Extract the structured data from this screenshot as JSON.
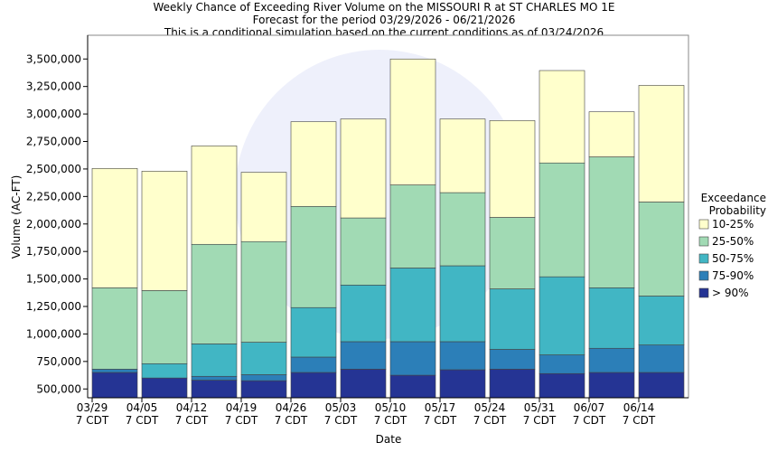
{
  "chart_data": {
    "type": "range-bar",
    "title": [
      "Weekly Chance of Exceeding River Volume on the MISSOURI R at ST CHARLES MO 1E",
      "Forecast for the period 03/29/2026 - 06/21/2026",
      "This is a conditional simulation based on the current conditions as of 03/24/2026"
    ],
    "x_label": "Date",
    "y_label": "Volume (AC-FT)",
    "legend_title": "Exceedance\nProbability",
    "categories": [
      "03/29\n7 CDT",
      "04/05\n7 CDT",
      "04/12\n7 CDT",
      "04/19\n7 CDT",
      "04/26\n7 CDT",
      "05/03\n7 CDT",
      "05/10\n7 CDT",
      "05/17\n7 CDT",
      "05/24\n7 CDT",
      "05/31\n7 CDT",
      "06/07\n7 CDT",
      "06/14\n7 CDT"
    ],
    "series": [
      {
        "name": "> 90%",
        "color": "#253494",
        "values": [
          650000,
          600000,
          580000,
          575000,
          650000,
          680000,
          625000,
          675000,
          680000,
          640000,
          650000,
          650000
        ]
      },
      {
        "name": "75-90%",
        "color": "#2c7fb8",
        "values": [
          680000,
          600000,
          615000,
          630000,
          790000,
          930000,
          930000,
          930000,
          860000,
          810000,
          870000,
          900000
        ]
      },
      {
        "name": "50-75%",
        "color": "#41b6c4",
        "values": [
          680000,
          730000,
          910000,
          925000,
          1240000,
          1445000,
          1600000,
          1620000,
          1410000,
          1520000,
          1420000,
          1345000
        ]
      },
      {
        "name": "25-50%",
        "color": "#a1dab4",
        "values": [
          1420000,
          1395000,
          1815000,
          1840000,
          2160000,
          2055000,
          2355000,
          2285000,
          2060000,
          2555000,
          2610000,
          2200000
        ]
      },
      {
        "name": "10-25%",
        "color": "#ffffcc",
        "values": [
          2505000,
          2480000,
          2710000,
          2470000,
          2930000,
          2955000,
          3500000,
          2955000,
          2940000,
          3395000,
          3020000,
          3260000
        ]
      }
    ],
    "ylim": [
      420000,
      3650000
    ],
    "yticks": [
      {
        "value": 500000,
        "label": "500,000"
      },
      {
        "value": 750000,
        "label": "750,000"
      },
      {
        "value": 1000000,
        "label": "1,000,000"
      },
      {
        "value": 1250000,
        "label": "1,250,000"
      },
      {
        "value": 1500000,
        "label": "1,500,000"
      },
      {
        "value": 1750000,
        "label": "1,750,000"
      },
      {
        "value": 2000000,
        "label": "2,000,000"
      },
      {
        "value": 2250000,
        "label": "2,250,000"
      },
      {
        "value": 2500000,
        "label": "2,500,000"
      },
      {
        "value": 2750000,
        "label": "2,750,000"
      },
      {
        "value": 3000000,
        "label": "3,000,000"
      },
      {
        "value": 3250000,
        "label": "3,250,000"
      },
      {
        "value": 3500000,
        "label": "3,500,000"
      }
    ],
    "legend_position": "right"
  }
}
